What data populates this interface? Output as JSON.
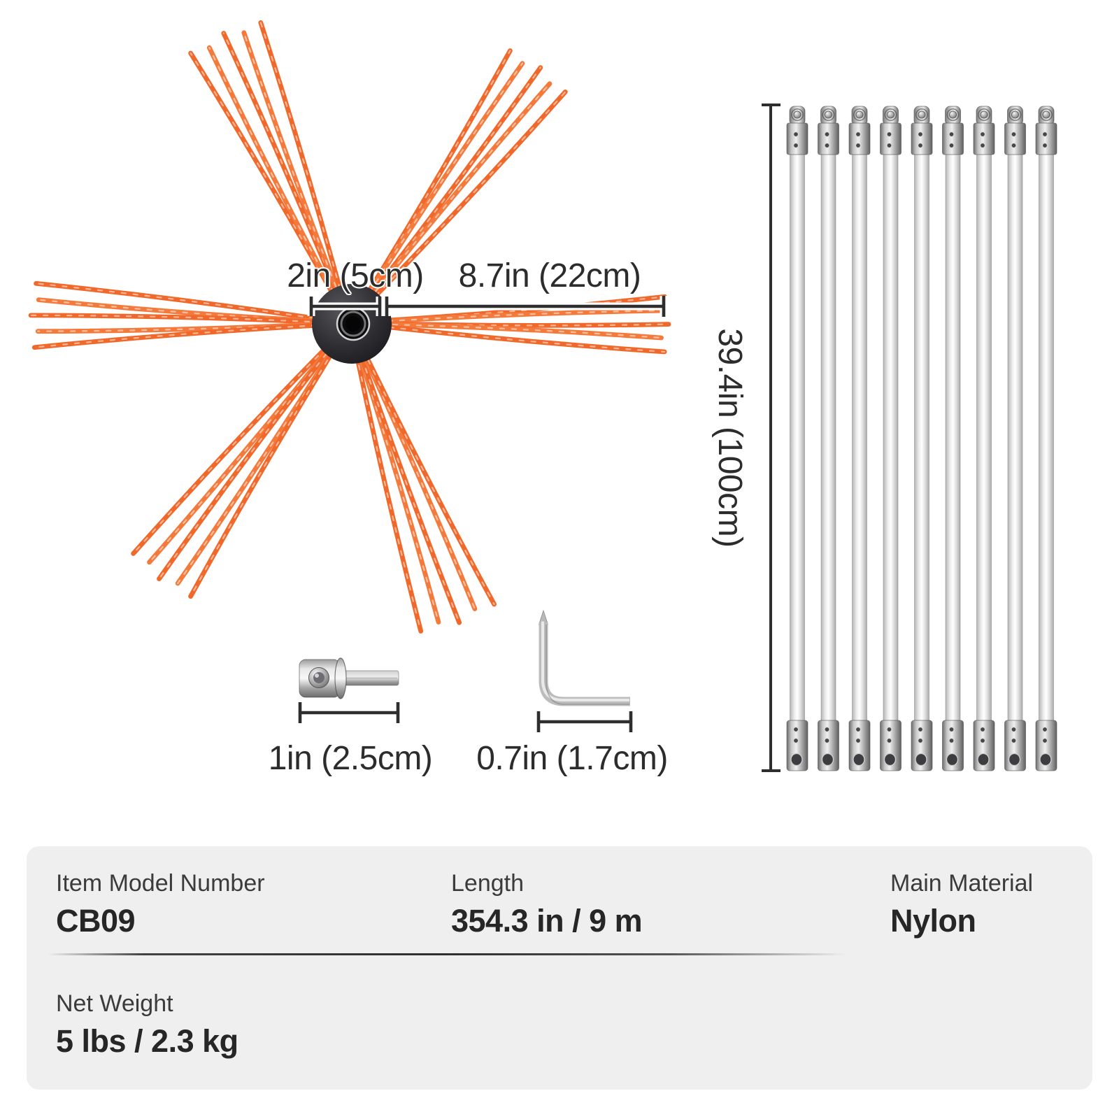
{
  "product_diagram": {
    "brush": {
      "hub_width_label": "2in (5cm)",
      "bristle_length_label": "8.7in (22cm)"
    },
    "rods": {
      "count": 9,
      "length_label": "39.4in (100cm)"
    },
    "adapter": {
      "size_label": "1in (2.5cm)"
    },
    "hex_key": {
      "size_label": "0.7in (1.7cm)"
    }
  },
  "specs": {
    "rows": [
      {
        "cells": [
          {
            "label": "Item Model Number",
            "value": "CB09"
          },
          {
            "label": "Length",
            "value": "354.3 in / 9 m"
          },
          {
            "label": "Main Material",
            "value": "Nylon"
          }
        ]
      },
      {
        "cells": [
          {
            "label": "Net Weight",
            "value": "5 lbs / 2.3 kg"
          }
        ]
      }
    ]
  },
  "colors": {
    "bristle_orange": "#F0682A",
    "bristle_orange_alt": "#F47A3C",
    "dimension_ink": "#2E2E2E",
    "panel_bg": "#EFEFEF",
    "hub_black": "#232326"
  }
}
